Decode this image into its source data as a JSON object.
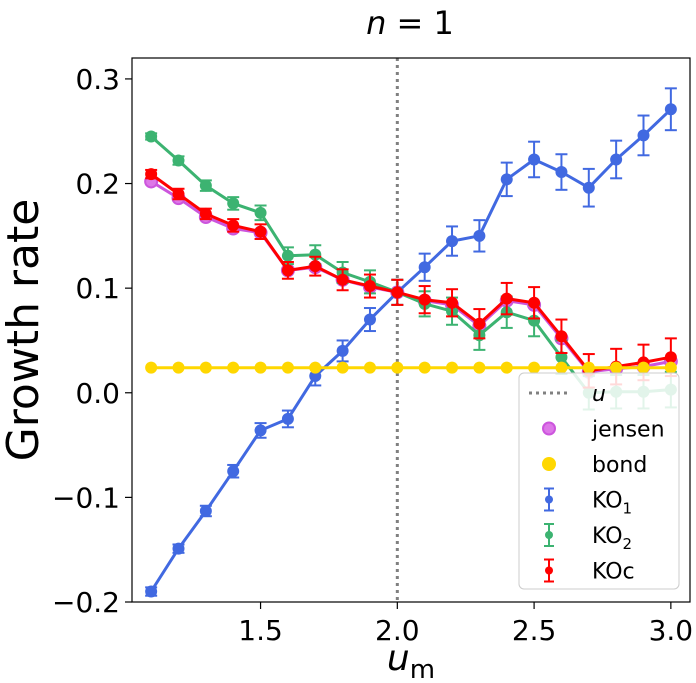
{
  "chart_data": {
    "type": "line",
    "title": "n = 1",
    "xlabel": "u_m",
    "ylabel": "Growth rate",
    "xlim": [
      1.03,
      3.07
    ],
    "ylim": [
      -0.2,
      0.32
    ],
    "xticks": [
      1.5,
      2.0,
      2.5,
      3.0
    ],
    "xtick_labels": [
      "1.5",
      "2.0",
      "2.5",
      "3.0"
    ],
    "yticks": [
      -0.2,
      -0.1,
      0.0,
      0.1,
      0.2,
      0.3
    ],
    "ytick_labels": [
      "−0.2",
      "−0.1",
      "0.0",
      "0.1",
      "0.2",
      "0.3"
    ],
    "grid": false,
    "legend_position": "lower-right",
    "vline": {
      "x": 2.0,
      "label": "u",
      "color": "#808080",
      "style": "dotted"
    },
    "x": [
      1.1,
      1.2,
      1.3,
      1.4,
      1.5,
      1.6,
      1.7,
      1.8,
      1.9,
      2.0,
      2.1,
      2.2,
      2.3,
      2.4,
      2.5,
      2.6,
      2.7,
      2.8,
      2.9,
      3.0
    ],
    "series": [
      {
        "name": "jensen",
        "kind": "line-markers",
        "color": "#cc55dd",
        "values": [
          0.202,
          0.186,
          0.168,
          0.157,
          0.153,
          0.117,
          0.12,
          0.108,
          0.101,
          0.096,
          0.088,
          0.084,
          0.064,
          0.088,
          0.084,
          0.052,
          0.02,
          0.023,
          0.025,
          0.03
        ]
      },
      {
        "name": "bond",
        "kind": "line-markers",
        "color": "#ffd700",
        "values": [
          0.024,
          0.024,
          0.024,
          0.024,
          0.024,
          0.024,
          0.024,
          0.024,
          0.024,
          0.024,
          0.024,
          0.024,
          0.024,
          0.024,
          0.024,
          0.024,
          0.024,
          0.024,
          0.024,
          0.024
        ]
      },
      {
        "name": "KO",
        "subscript": "1",
        "kind": "errorbar",
        "color": "#4169e1",
        "values": [
          -0.19,
          -0.149,
          -0.113,
          -0.075,
          -0.036,
          -0.025,
          0.016,
          0.04,
          0.07,
          0.096,
          0.12,
          0.145,
          0.15,
          0.204,
          0.223,
          0.211,
          0.196,
          0.223,
          0.246,
          0.271
        ],
        "errors": [
          0.004,
          0.004,
          0.005,
          0.006,
          0.007,
          0.008,
          0.009,
          0.01,
          0.011,
          0.012,
          0.013,
          0.014,
          0.015,
          0.016,
          0.017,
          0.017,
          0.018,
          0.018,
          0.019,
          0.02
        ]
      },
      {
        "name": "KO",
        "subscript": "2",
        "kind": "errorbar",
        "color": "#3cb371",
        "values": [
          0.245,
          0.222,
          0.198,
          0.181,
          0.172,
          0.131,
          0.132,
          0.115,
          0.106,
          0.096,
          0.085,
          0.078,
          0.055,
          0.077,
          0.069,
          0.034,
          0.0,
          0.001,
          0.001,
          0.003
        ],
        "errors": [
          0.003,
          0.004,
          0.005,
          0.006,
          0.007,
          0.008,
          0.009,
          0.01,
          0.011,
          0.012,
          0.012,
          0.013,
          0.014,
          0.015,
          0.015,
          0.016,
          0.016,
          0.016,
          0.016,
          0.017
        ]
      },
      {
        "name": "KOc",
        "kind": "errorbar",
        "color": "#ff0000",
        "values": [
          0.209,
          0.19,
          0.171,
          0.16,
          0.154,
          0.117,
          0.121,
          0.108,
          0.102,
          0.096,
          0.089,
          0.086,
          0.066,
          0.09,
          0.086,
          0.054,
          0.021,
          0.025,
          0.029,
          0.034
        ],
        "errors": [
          0.004,
          0.005,
          0.005,
          0.006,
          0.007,
          0.008,
          0.009,
          0.01,
          0.011,
          0.012,
          0.013,
          0.013,
          0.014,
          0.015,
          0.015,
          0.016,
          0.016,
          0.017,
          0.017,
          0.018
        ]
      }
    ],
    "legend": [
      {
        "label": "u",
        "style": "dotted-line",
        "color": "#808080"
      },
      {
        "label": "jensen",
        "style": "marker-ring",
        "color": "#cc55dd"
      },
      {
        "label": "bond",
        "style": "marker",
        "color": "#ffd700"
      },
      {
        "label": "KO",
        "subscript": "1",
        "style": "errorbar",
        "color": "#4169e1"
      },
      {
        "label": "KO",
        "subscript": "2",
        "style": "errorbar",
        "color": "#3cb371"
      },
      {
        "label": "KOc",
        "subscript": "",
        "style": "errorbar",
        "color": "#ff0000"
      }
    ]
  }
}
